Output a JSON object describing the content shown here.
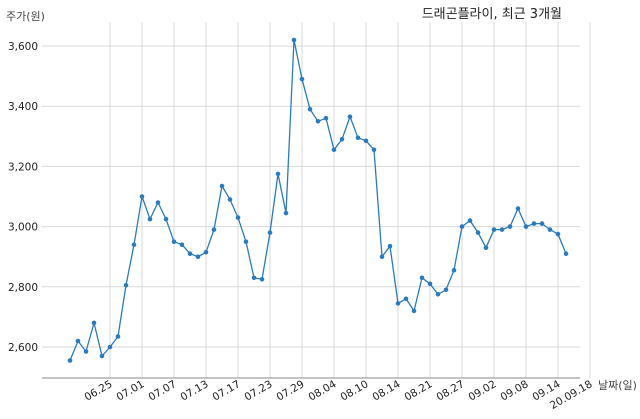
{
  "chart_data": {
    "type": "line",
    "title": "드래곤플라이, 최근 3개월",
    "ylabel": "주가(원)",
    "xlabel": "날짜(일)",
    "ylim": [
      2500,
      3700
    ],
    "yticks": [
      2600,
      2800,
      3000,
      3200,
      3400,
      3600
    ],
    "ytick_labels": [
      "2,600",
      "2,800",
      "3,000",
      "3,200",
      "3,400",
      "3,600"
    ],
    "xtick_labels": [
      "06.25",
      "07.01",
      "07.07",
      "07.13",
      "07.17",
      "07.23",
      "07.29",
      "08.04",
      "08.10",
      "08.14",
      "08.21",
      "08.27",
      "09.02",
      "09.08",
      "09.14",
      "20.09.18"
    ],
    "xtick_indices": [
      5,
      9,
      13,
      17,
      21,
      25,
      29,
      33,
      37,
      41,
      45,
      49,
      53,
      57,
      61,
      65
    ],
    "grid": true,
    "series": [
      {
        "color": "#2b7bba",
        "values": [
          2555,
          2620,
          2585,
          2680,
          2570,
          2600,
          2635,
          2805,
          2940,
          3100,
          3025,
          3080,
          3025,
          2950,
          2940,
          2910,
          2900,
          2915,
          2990,
          3135,
          3090,
          3030,
          2950,
          2830,
          2825,
          2980,
          3175,
          3045,
          3620,
          3490,
          3390,
          3350,
          3360,
          3255,
          3290,
          3365,
          3295,
          3285,
          3255,
          2900,
          2935,
          2745,
          2760,
          2720,
          2830,
          2810,
          2775,
          2790,
          2855,
          3000,
          3020,
          2980,
          2930,
          2990,
          2990,
          3000,
          3060,
          3000,
          3010,
          3010,
          2990,
          2975,
          2910
        ]
      }
    ]
  }
}
